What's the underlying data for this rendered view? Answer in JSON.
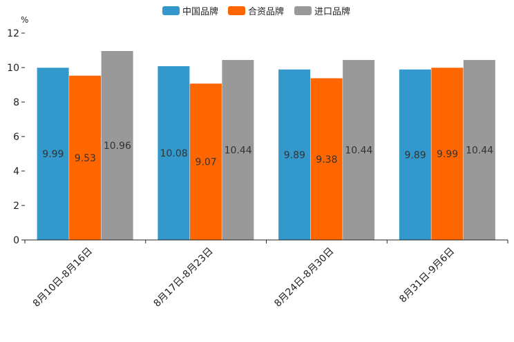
{
  "chart_data": {
    "type": "bar",
    "title": "",
    "xlabel": "",
    "ylabel": "%",
    "ylim": [
      0,
      12
    ],
    "yticks": [
      0,
      2,
      4,
      6,
      8,
      10,
      12
    ],
    "grid": false,
    "legend_position": "top-center",
    "categories": [
      "8月10日-8月16日",
      "8月17日-8月23日",
      "8月24日-8月30日",
      "8月31日-9月6日"
    ],
    "series": [
      {
        "name": "中国品牌",
        "color": "#3399cc",
        "values": [
          9.99,
          10.08,
          9.89,
          9.89
        ]
      },
      {
        "name": "合资品牌",
        "color": "#ff6600",
        "values": [
          9.53,
          9.07,
          9.38,
          9.99
        ]
      },
      {
        "name": "进口品牌",
        "color": "#999999",
        "values": [
          10.96,
          10.44,
          10.44,
          10.44
        ]
      }
    ]
  }
}
